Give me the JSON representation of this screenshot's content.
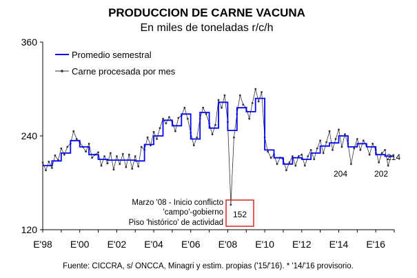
{
  "chart_data": {
    "type": "line",
    "title": "PRODUCCION DE CARNE VACUNA",
    "subtitle": "En miles de toneladas r/c/h",
    "ylim": [
      120,
      360
    ],
    "y_ticks": [
      "120",
      "240",
      "360"
    ],
    "x_ticks": [
      "E'98",
      "E'00",
      "E'02",
      "E'04",
      "E'06",
      "E'08",
      "E'10",
      "E'12",
      "E'14",
      "E'16"
    ],
    "x_range": [
      "1998-01",
      "2016-12"
    ],
    "grid": false,
    "legend_position": "top-left",
    "colors": {
      "semestral": "#0000ff",
      "monthly": "#333333",
      "annotation_box": "#dd2222"
    },
    "series": [
      {
        "name": "Promedio semestral",
        "kind": "step",
        "points": [
          {
            "x": "1998-01",
            "y": 202
          },
          {
            "x": "1998-07",
            "y": 208
          },
          {
            "x": "1999-01",
            "y": 218
          },
          {
            "x": "1999-07",
            "y": 234
          },
          {
            "x": "2000-01",
            "y": 226
          },
          {
            "x": "2000-07",
            "y": 216
          },
          {
            "x": "2001-01",
            "y": 210
          },
          {
            "x": "2001-07",
            "y": 209
          },
          {
            "x": "2002-01",
            "y": 209
          },
          {
            "x": "2002-07",
            "y": 209
          },
          {
            "x": "2003-01",
            "y": 208
          },
          {
            "x": "2003-07",
            "y": 229
          },
          {
            "x": "2004-01",
            "y": 240
          },
          {
            "x": "2004-07",
            "y": 260
          },
          {
            "x": "2005-01",
            "y": 253
          },
          {
            "x": "2005-07",
            "y": 268
          },
          {
            "x": "2006-01",
            "y": 236
          },
          {
            "x": "2006-07",
            "y": 270
          },
          {
            "x": "2007-01",
            "y": 250
          },
          {
            "x": "2007-07",
            "y": 283
          },
          {
            "x": "2008-01",
            "y": 247
          },
          {
            "x": "2008-07",
            "y": 276
          },
          {
            "x": "2009-01",
            "y": 271
          },
          {
            "x": "2009-07",
            "y": 288
          },
          {
            "x": "2010-01",
            "y": 222
          },
          {
            "x": "2010-07",
            "y": 212
          },
          {
            "x": "2011-01",
            "y": 204
          },
          {
            "x": "2011-07",
            "y": 212
          },
          {
            "x": "2012-01",
            "y": 210
          },
          {
            "x": "2012-07",
            "y": 218
          },
          {
            "x": "2013-01",
            "y": 227
          },
          {
            "x": "2013-07",
            "y": 231
          },
          {
            "x": "2014-01",
            "y": 240
          },
          {
            "x": "2014-07",
            "y": 226
          },
          {
            "x": "2015-01",
            "y": 230
          },
          {
            "x": "2015-07",
            "y": 226
          },
          {
            "x": "2016-01",
            "y": 216
          },
          {
            "x": "2016-07",
            "y": 214
          }
        ]
      },
      {
        "name": "Carne procesada por mes",
        "kind": "line-markers",
        "points": [
          {
            "x": "1998-01",
            "y": 206
          },
          {
            "x": "1998-03",
            "y": 196
          },
          {
            "x": "1998-05",
            "y": 207
          },
          {
            "x": "1998-07",
            "y": 199
          },
          {
            "x": "1998-09",
            "y": 215
          },
          {
            "x": "1998-11",
            "y": 209
          },
          {
            "x": "1999-01",
            "y": 224
          },
          {
            "x": "1999-03",
            "y": 216
          },
          {
            "x": "1999-05",
            "y": 226
          },
          {
            "x": "1999-07",
            "y": 230
          },
          {
            "x": "1999-09",
            "y": 246
          },
          {
            "x": "1999-11",
            "y": 236
          },
          {
            "x": "2000-01",
            "y": 232
          },
          {
            "x": "2000-03",
            "y": 226
          },
          {
            "x": "2000-05",
            "y": 220
          },
          {
            "x": "2000-07",
            "y": 230
          },
          {
            "x": "2000-09",
            "y": 212
          },
          {
            "x": "2000-11",
            "y": 216
          },
          {
            "x": "2001-01",
            "y": 219
          },
          {
            "x": "2001-03",
            "y": 202
          },
          {
            "x": "2001-05",
            "y": 214
          },
          {
            "x": "2001-07",
            "y": 205
          },
          {
            "x": "2001-09",
            "y": 218
          },
          {
            "x": "2001-11",
            "y": 197
          },
          {
            "x": "2002-01",
            "y": 214
          },
          {
            "x": "2002-03",
            "y": 204
          },
          {
            "x": "2002-05",
            "y": 217
          },
          {
            "x": "2002-07",
            "y": 200
          },
          {
            "x": "2002-09",
            "y": 216
          },
          {
            "x": "2002-11",
            "y": 198
          },
          {
            "x": "2003-01",
            "y": 214
          },
          {
            "x": "2003-03",
            "y": 201
          },
          {
            "x": "2003-05",
            "y": 226
          },
          {
            "x": "2003-07",
            "y": 222
          },
          {
            "x": "2003-09",
            "y": 238
          },
          {
            "x": "2003-11",
            "y": 228
          },
          {
            "x": "2004-01",
            "y": 245
          },
          {
            "x": "2004-03",
            "y": 236
          },
          {
            "x": "2004-05",
            "y": 250
          },
          {
            "x": "2004-07",
            "y": 262
          },
          {
            "x": "2004-09",
            "y": 256
          },
          {
            "x": "2004-11",
            "y": 264
          },
          {
            "x": "2005-01",
            "y": 258
          },
          {
            "x": "2005-03",
            "y": 246
          },
          {
            "x": "2005-05",
            "y": 263
          },
          {
            "x": "2005-07",
            "y": 266
          },
          {
            "x": "2005-09",
            "y": 276
          },
          {
            "x": "2005-11",
            "y": 262
          },
          {
            "x": "2006-01",
            "y": 244
          },
          {
            "x": "2006-03",
            "y": 228
          },
          {
            "x": "2006-05",
            "y": 238
          },
          {
            "x": "2006-07",
            "y": 262
          },
          {
            "x": "2006-09",
            "y": 276
          },
          {
            "x": "2006-11",
            "y": 268
          },
          {
            "x": "2007-01",
            "y": 256
          },
          {
            "x": "2007-03",
            "y": 242
          },
          {
            "x": "2007-05",
            "y": 254
          },
          {
            "x": "2007-07",
            "y": 286
          },
          {
            "x": "2007-09",
            "y": 276
          },
          {
            "x": "2007-11",
            "y": 292
          },
          {
            "x": "2008-01",
            "y": 258
          },
          {
            "x": "2008-03",
            "y": 152
          },
          {
            "x": "2008-05",
            "y": 238
          },
          {
            "x": "2008-07",
            "y": 268
          },
          {
            "x": "2008-09",
            "y": 292
          },
          {
            "x": "2008-11",
            "y": 280
          },
          {
            "x": "2009-01",
            "y": 276
          },
          {
            "x": "2009-03",
            "y": 262
          },
          {
            "x": "2009-05",
            "y": 282
          },
          {
            "x": "2009-07",
            "y": 300
          },
          {
            "x": "2009-09",
            "y": 284
          },
          {
            "x": "2009-11",
            "y": 296
          },
          {
            "x": "2010-01",
            "y": 238
          },
          {
            "x": "2010-03",
            "y": 220
          },
          {
            "x": "2010-05",
            "y": 212
          },
          {
            "x": "2010-07",
            "y": 216
          },
          {
            "x": "2010-09",
            "y": 204
          },
          {
            "x": "2010-11",
            "y": 212
          },
          {
            "x": "2011-01",
            "y": 210
          },
          {
            "x": "2011-03",
            "y": 196
          },
          {
            "x": "2011-05",
            "y": 206
          },
          {
            "x": "2011-07",
            "y": 214
          },
          {
            "x": "2011-09",
            "y": 202
          },
          {
            "x": "2011-11",
            "y": 214
          },
          {
            "x": "2012-01",
            "y": 216
          },
          {
            "x": "2012-03",
            "y": 202
          },
          {
            "x": "2012-05",
            "y": 214
          },
          {
            "x": "2012-07",
            "y": 222
          },
          {
            "x": "2012-09",
            "y": 210
          },
          {
            "x": "2012-11",
            "y": 224
          },
          {
            "x": "2013-01",
            "y": 234
          },
          {
            "x": "2013-03",
            "y": 218
          },
          {
            "x": "2013-05",
            "y": 232
          },
          {
            "x": "2013-07",
            "y": 246
          },
          {
            "x": "2013-09",
            "y": 222
          },
          {
            "x": "2013-11",
            "y": 236
          },
          {
            "x": "2014-01",
            "y": 248
          },
          {
            "x": "2014-03",
            "y": 226
          },
          {
            "x": "2014-05",
            "y": 242
          },
          {
            "x": "2014-07",
            "y": 230
          },
          {
            "x": "2014-09",
            "y": 204
          },
          {
            "x": "2014-11",
            "y": 224
          },
          {
            "x": "2015-01",
            "y": 236
          },
          {
            "x": "2015-03",
            "y": 222
          },
          {
            "x": "2015-05",
            "y": 234
          },
          {
            "x": "2015-07",
            "y": 228
          },
          {
            "x": "2015-09",
            "y": 216
          },
          {
            "x": "2015-11",
            "y": 230
          },
          {
            "x": "2016-01",
            "y": 222
          },
          {
            "x": "2016-03",
            "y": 206
          },
          {
            "x": "2016-05",
            "y": 218
          },
          {
            "x": "2016-07",
            "y": 222
          },
          {
            "x": "2016-09",
            "y": 202
          },
          {
            "x": "2016-11",
            "y": 214
          }
        ]
      }
    ],
    "annotations": {
      "conflict_lines": [
        "Marzo '08 - Inicio conflicto",
        "'campo'-gobierno",
        "Piso 'histórico' de actividad"
      ],
      "conflict_value": "152",
      "low_2014": "204",
      "low_2016": "202",
      "last_value": "214"
    },
    "source": "Fuente: CICCRA, s/ ONCCA, Minagri y estim. propias ('15/'16). * '14/'16 provisorio."
  }
}
